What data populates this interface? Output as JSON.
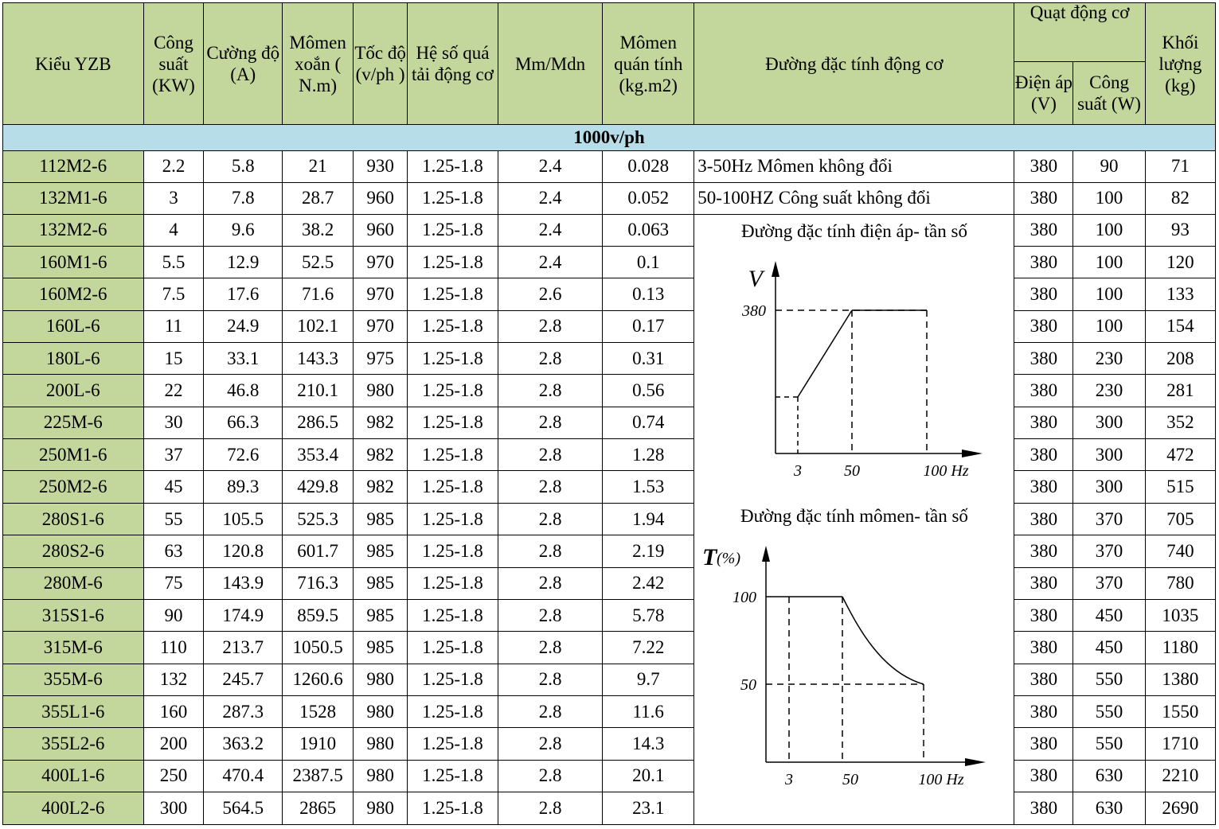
{
  "header": {
    "model": "Kiểu YZB",
    "power": "Công suất (KW)",
    "current": "Cường độ (A)",
    "torque": "Mômen xoắn ( N.m)",
    "speed": "Tốc độ (v/ph )",
    "overload": "Hệ số quá tải động cơ",
    "ratio": "Mm/Mdn",
    "inertia": "Mômen quán tính (kg.m2)",
    "curve": "Đường đặc tính động cơ",
    "fan": "Quạt động cơ",
    "fan_voltage": "Điện áp (V)",
    "fan_power": "Công suất (W)",
    "weight": "Khối lượng (kg)"
  },
  "section_label": "1000v/ph",
  "notes": {
    "line1": "3-50Hz Mômen không đổi",
    "line2": "50-100HZ Công suất không đổi",
    "line3": "Đường đặc tính điện áp- tần số",
    "line4": "Đường đặc tính mômen- tần số"
  },
  "graph_voltage": {
    "axis_label": "V",
    "y_tick": "380",
    "x_ticks": [
      "3",
      "50",
      "100 Hz"
    ]
  },
  "graph_torque": {
    "axis_label": "T",
    "axis_unit": "(%)",
    "y_ticks": [
      "100",
      "50"
    ],
    "x_ticks": [
      "3",
      "50",
      "100 Hz"
    ]
  },
  "rows": [
    [
      "112M2-6",
      "2.2",
      "5.8",
      "21",
      "930",
      "1.25-1.8",
      "2.4",
      "0.028",
      "380",
      "90",
      "71"
    ],
    [
      "132M1-6",
      "3",
      "7.8",
      "28.7",
      "960",
      "1.25-1.8",
      "2.4",
      "0.052",
      "380",
      "100",
      "82"
    ],
    [
      "132M2-6",
      "4",
      "9.6",
      "38.2",
      "960",
      "1.25-1.8",
      "2.4",
      "0.063",
      "380",
      "100",
      "93"
    ],
    [
      "160M1-6",
      "5.5",
      "12.9",
      "52.5",
      "970",
      "1.25-1.8",
      "2.4",
      "0.1",
      "380",
      "100",
      "120"
    ],
    [
      "160M2-6",
      "7.5",
      "17.6",
      "71.6",
      "970",
      "1.25-1.8",
      "2.6",
      "0.13",
      "380",
      "100",
      "133"
    ],
    [
      "160L-6",
      "11",
      "24.9",
      "102.1",
      "970",
      "1.25-1.8",
      "2.8",
      "0.17",
      "380",
      "100",
      "154"
    ],
    [
      "180L-6",
      "15",
      "33.1",
      "143.3",
      "975",
      "1.25-1.8",
      "2.8",
      "0.31",
      "380",
      "230",
      "208"
    ],
    [
      "200L-6",
      "22",
      "46.8",
      "210.1",
      "980",
      "1.25-1.8",
      "2.8",
      "0.56",
      "380",
      "230",
      "281"
    ],
    [
      "225M-6",
      "30",
      "66.3",
      "286.5",
      "982",
      "1.25-1.8",
      "2.8",
      "0.74",
      "380",
      "300",
      "352"
    ],
    [
      "250M1-6",
      "37",
      "72.6",
      "353.4",
      "982",
      "1.25-1.8",
      "2.8",
      "1.28",
      "380",
      "300",
      "472"
    ],
    [
      "250M2-6",
      "45",
      "89.3",
      "429.8",
      "982",
      "1.25-1.8",
      "2.8",
      "1.53",
      "380",
      "300",
      "515"
    ],
    [
      "280S1-6",
      "55",
      "105.5",
      "525.3",
      "985",
      "1.25-1.8",
      "2.8",
      "1.94",
      "380",
      "370",
      "705"
    ],
    [
      "280S2-6",
      "63",
      "120.8",
      "601.7",
      "985",
      "1.25-1.8",
      "2.8",
      "2.19",
      "380",
      "370",
      "740"
    ],
    [
      "280M-6",
      "75",
      "143.9",
      "716.3",
      "985",
      "1.25-1.8",
      "2.8",
      "2.42",
      "380",
      "370",
      "780"
    ],
    [
      "315S1-6",
      "90",
      "174.9",
      "859.5",
      "985",
      "1.25-1.8",
      "2.8",
      "5.78",
      "380",
      "450",
      "1035"
    ],
    [
      "315M-6",
      "110",
      "213.7",
      "1050.5",
      "985",
      "1.25-1.8",
      "2.8",
      "7.22",
      "380",
      "450",
      "1180"
    ],
    [
      "355M-6",
      "132",
      "245.7",
      "1260.6",
      "980",
      "1.25-1.8",
      "2.8",
      "9.7",
      "380",
      "550",
      "1380"
    ],
    [
      "355L1-6",
      "160",
      "287.3",
      "1528",
      "980",
      "1.25-1.8",
      "2.8",
      "11.6",
      "380",
      "550",
      "1550"
    ],
    [
      "355L2-6",
      "200",
      "363.2",
      "1910",
      "980",
      "1.25-1.8",
      "2.8",
      "14.3",
      "380",
      "550",
      "1710"
    ],
    [
      "400L1-6",
      "250",
      "470.4",
      "2387.5",
      "980",
      "1.25-1.8",
      "2.8",
      "20.1",
      "380",
      "630",
      "2210"
    ],
    [
      "400L2-6",
      "300",
      "564.5",
      "2865",
      "980",
      "1.25-1.8",
      "2.8",
      "23.1",
      "380",
      "630",
      "2690"
    ]
  ]
}
